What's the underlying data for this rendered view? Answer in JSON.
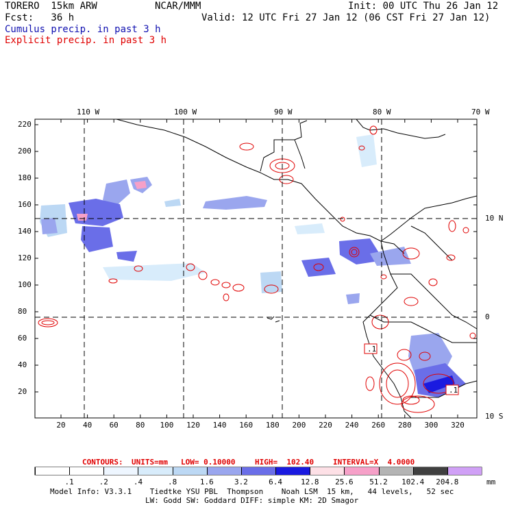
{
  "header": {
    "model": "TORERO  15km ARW",
    "center": "NCAR/MMM",
    "init": "Init: 00 UTC Thu 26 Jan 12",
    "fcst": "Fcst:   36 h",
    "valid": "Valid: 12 UTC Fri 27 Jan 12 (06 CST Fri 27 Jan 12)",
    "field1": "Cumulus precip. in past 3 h",
    "field2": "Explicit precip. in past 3 h"
  },
  "colors": {
    "cumulus_label": "#1010b0",
    "explicit_label": "#e00000",
    "coast": "#000000",
    "grid": "#000000",
    "contour": "#e00000"
  },
  "map": {
    "lon_labels": [
      "110 W",
      "100 W",
      "90 W",
      "80 W",
      "70 W"
    ],
    "lat_labels": [
      "10 N",
      "0",
      "10 S"
    ],
    "y_ticks": [
      "220",
      "200",
      "180",
      "160",
      "140",
      "120",
      "100",
      "80",
      "60",
      "40",
      "20"
    ],
    "x_ticks": [
      "20",
      "40",
      "60",
      "80",
      "100",
      "120",
      "140",
      "160",
      "180",
      "200",
      "220",
      "240",
      "260",
      "280",
      "300",
      "320"
    ],
    "contour_labels": [
      ".1",
      ".1"
    ]
  },
  "contour_info": {
    "contours": "CONTOURS:",
    "units": "UNITS=mm",
    "low": "LOW= 0.10000",
    "high": "HIGH=  102.40",
    "interval": "INTERVAL=X  4.0000"
  },
  "legend": {
    "levels": [
      ".1",
      ".2",
      ".4",
      ".8",
      "1.6",
      "3.2",
      "6.4",
      "12.8",
      "25.6",
      "51.2",
      "102.4",
      "204.8"
    ],
    "unit": "mm",
    "colors": [
      "#ffffff",
      "#ffffff",
      "#eef6ff",
      "#d8ecfb",
      "#bcd8f4",
      "#9aa6ee",
      "#6a6ee8",
      "#1a1ae0",
      "#fde0e6",
      "#f6a0c8",
      "#b4b4b4",
      "#404040",
      "#d0a0f6"
    ]
  },
  "footer": {
    "line1": "Model Info: V3.3.1    Tiedtke YSU PBL  Thompson    Noah LSM  15 km,   44 levels,   52 sec",
    "line2": "LW: Godd SW: Goddard DIFF: simple KM: 2D Smagor"
  }
}
